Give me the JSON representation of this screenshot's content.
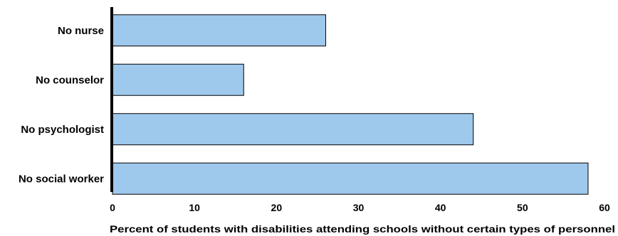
{
  "chart_data": {
    "type": "bar",
    "orientation": "horizontal",
    "categories": [
      "No nurse",
      "No counselor",
      "No psychologist",
      "No social worker"
    ],
    "values": [
      26,
      16,
      44,
      58
    ],
    "xlabel": "Percent of students with disabilities attending schools without certain types of personnel",
    "xlim": [
      0,
      60
    ],
    "xticks": [
      0,
      10,
      20,
      30,
      40,
      50,
      60
    ],
    "grid": false,
    "bar_color": "#9fc8ed",
    "bar_stroke": "#000000"
  }
}
